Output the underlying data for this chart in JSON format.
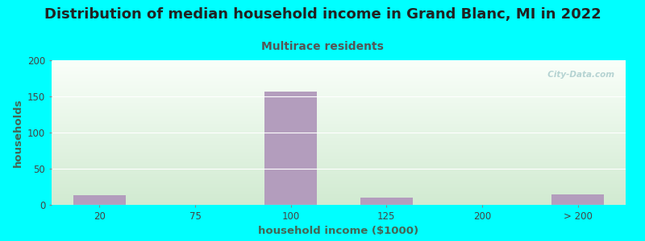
{
  "title": "Distribution of median household income in Grand Blanc, MI in 2022",
  "subtitle": "Multirace residents",
  "xlabel": "household income ($1000)",
  "ylabel": "households",
  "background_color": "#00FFFF",
  "bar_color": "#b39dbd",
  "categories": [
    "20",
    "75",
    "100",
    "125",
    "200",
    "> 200"
  ],
  "values": [
    13,
    0,
    157,
    10,
    0,
    14
  ],
  "yticks": [
    0,
    50,
    100,
    150,
    200
  ],
  "ylim": [
    0,
    200
  ],
  "title_fontsize": 13,
  "subtitle_fontsize": 10,
  "label_fontsize": 9.5,
  "tick_fontsize": 8.5,
  "watermark": "  City-Data.com",
  "title_color": "#222222",
  "subtitle_color": "#555555",
  "label_color": "#446655",
  "tick_color": "#444444",
  "watermark_color": "#aacccc",
  "grid_color": "#ffffff",
  "bar_width": 0.55
}
